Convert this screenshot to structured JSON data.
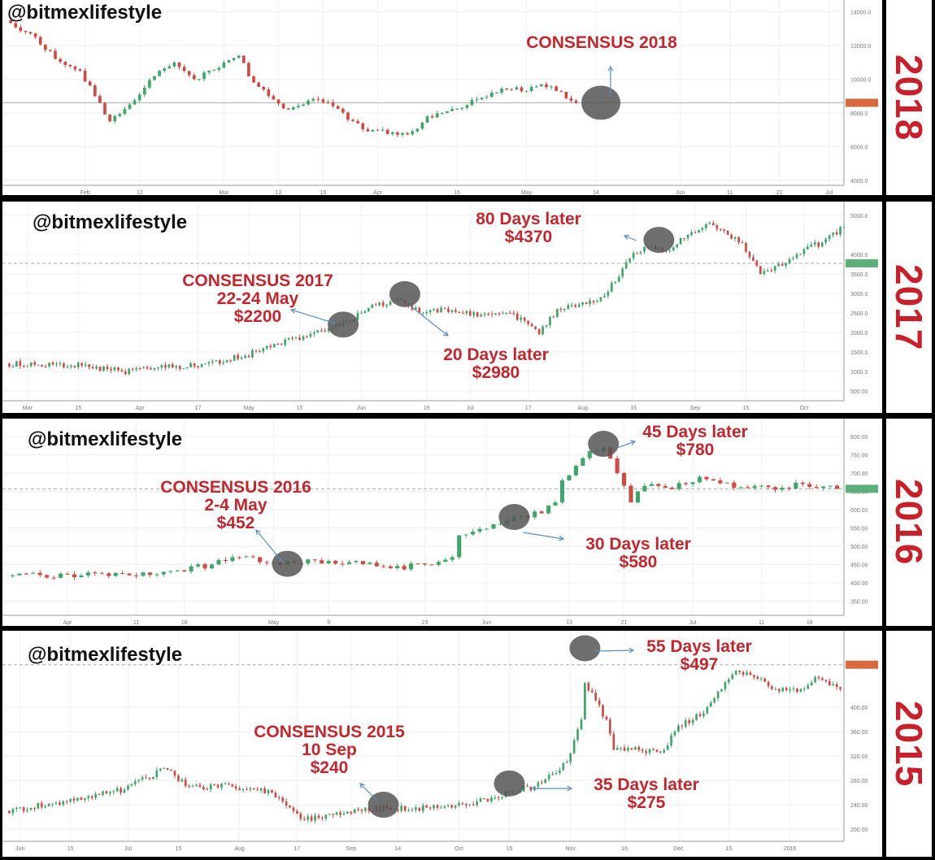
{
  "panels": [
    {
      "year": "2018",
      "watermark": "@bitmexlifestyle",
      "annotations": [
        {
          "lines": [
            "CONSENSUS 2018"
          ]
        }
      ]
    },
    {
      "year": "2017",
      "watermark": "@bitmexlifestyle",
      "annotations": [
        {
          "lines": [
            "CONSENSUS 2017",
            "22-24 May",
            "$2200"
          ]
        },
        {
          "lines": [
            "20 Days later",
            "$2980"
          ]
        },
        {
          "lines": [
            "80 Days later",
            "$4370"
          ]
        }
      ]
    },
    {
      "year": "2016",
      "watermark": "@bitmexlifestyle",
      "annotations": [
        {
          "lines": [
            "CONSENSUS 2016",
            "2-4 May",
            "$452"
          ]
        },
        {
          "lines": [
            "30 Days later",
            "$580"
          ]
        },
        {
          "lines": [
            "45 Days later",
            "$780"
          ]
        }
      ]
    },
    {
      "year": "2015",
      "watermark": "@bitmexlifestyle",
      "annotations": [
        {
          "lines": [
            "CONSENSUS 2015",
            "10 Sep",
            "$240"
          ]
        },
        {
          "lines": [
            "35 Days later",
            "$275"
          ]
        },
        {
          "lines": [
            "55 Days later",
            "$497"
          ]
        }
      ]
    }
  ],
  "colors": {
    "up": "#3fa66a",
    "down": "#cf4a43",
    "annotation": "#c3262c",
    "year": "#c8202a",
    "highlight": "#555555"
  },
  "chart_data": [
    {
      "type": "candlestick",
      "xlim": [
        "2018-01-16",
        "2018-07-04"
      ],
      "ylim": [
        3700,
        14700
      ],
      "grid": true,
      "yticks": [
        4000,
        6000,
        8000,
        10000,
        12000,
        14000
      ],
      "xticks": [
        {
          "label": "Feb",
          "date": "2018-02-01"
        },
        {
          "label": "12",
          "date": "2018-02-12"
        },
        {
          "label": "Mar",
          "date": "2018-03-01"
        },
        {
          "label": "12",
          "date": "2018-03-12"
        },
        {
          "label": "19",
          "date": "2018-03-21"
        },
        {
          "label": "Apr",
          "date": "2018-04-01"
        },
        {
          "label": "16",
          "date": "2018-04-17"
        },
        {
          "label": "May",
          "date": "2018-05-01"
        },
        {
          "label": "14",
          "date": "2018-05-15"
        },
        {
          "label": "Jun",
          "date": "2018-06-01"
        },
        {
          "label": "11",
          "date": "2018-06-11"
        },
        {
          "label": "21",
          "date": "2018-06-21"
        },
        {
          "label": "Jul",
          "date": "2018-07-01"
        }
      ],
      "price_line": 8600,
      "close": [
        [
          "2018-01-16",
          13500
        ],
        [
          "2018-01-22",
          12500
        ],
        [
          "2018-01-26",
          11200
        ],
        [
          "2018-01-31",
          10500
        ],
        [
          "2018-02-03",
          9000
        ],
        [
          "2018-02-06",
          7500
        ],
        [
          "2018-02-10",
          8500
        ],
        [
          "2018-02-13",
          9500
        ],
        [
          "2018-02-16",
          10500
        ],
        [
          "2018-02-19",
          11000
        ],
        [
          "2018-02-23",
          10000
        ],
        [
          "2018-02-26",
          10500
        ],
        [
          "2018-03-01",
          11000
        ],
        [
          "2018-03-04",
          11400
        ],
        [
          "2018-03-07",
          9800
        ],
        [
          "2018-03-11",
          8800
        ],
        [
          "2018-03-14",
          8200
        ],
        [
          "2018-03-17",
          8500
        ],
        [
          "2018-03-20",
          8800
        ],
        [
          "2018-03-23",
          8400
        ],
        [
          "2018-03-26",
          7600
        ],
        [
          "2018-03-30",
          6900
        ],
        [
          "2018-04-02",
          7000
        ],
        [
          "2018-04-05",
          6700
        ],
        [
          "2018-04-08",
          6900
        ],
        [
          "2018-04-11",
          7800
        ],
        [
          "2018-04-15",
          8100
        ],
        [
          "2018-04-18",
          8300
        ],
        [
          "2018-04-21",
          8800
        ],
        [
          "2018-04-24",
          9200
        ],
        [
          "2018-04-28",
          9400
        ],
        [
          "2018-05-01",
          9300
        ],
        [
          "2018-05-04",
          9700
        ],
        [
          "2018-05-07",
          9300
        ],
        [
          "2018-05-11",
          8600
        ]
      ],
      "highlights": [
        {
          "date": "2018-05-16",
          "price": 8600
        }
      ]
    },
    {
      "type": "candlestick",
      "xlim": [
        "2017-02-23",
        "2017-10-12"
      ],
      "ylim": [
        250,
        5350
      ],
      "grid": true,
      "yticks": [
        500,
        1000,
        1500,
        2000,
        2500,
        3000,
        3500,
        4000,
        5000
      ],
      "xticks": [
        {
          "label": "Mar",
          "date": "2017-03-01"
        },
        {
          "label": "15",
          "date": "2017-03-15"
        },
        {
          "label": "Apr",
          "date": "2017-04-01"
        },
        {
          "label": "17",
          "date": "2017-04-17"
        },
        {
          "label": "May",
          "date": "2017-05-01"
        },
        {
          "label": "15",
          "date": "2017-05-15"
        },
        {
          "label": "Jun",
          "date": "2017-06-01"
        },
        {
          "label": "19",
          "date": "2017-06-19"
        },
        {
          "label": "Jul",
          "date": "2017-07-01"
        },
        {
          "label": "17",
          "date": "2017-07-17"
        },
        {
          "label": "Aug",
          "date": "2017-08-01"
        },
        {
          "label": "15",
          "date": "2017-08-15"
        },
        {
          "label": "Sep",
          "date": "2017-09-01"
        },
        {
          "label": "15",
          "date": "2017-09-15"
        },
        {
          "label": "Oct",
          "date": "2017-10-01"
        }
      ],
      "price_line": 3770,
      "close": [
        [
          "2017-02-23",
          1200
        ],
        [
          "2017-03-16",
          1150
        ],
        [
          "2017-03-27",
          1000
        ],
        [
          "2017-04-08",
          1100
        ],
        [
          "2017-04-19",
          1200
        ],
        [
          "2017-04-30",
          1400
        ],
        [
          "2017-05-09",
          1700
        ],
        [
          "2017-05-16",
          1900
        ],
        [
          "2017-05-23",
          2100
        ],
        [
          "2017-05-28",
          2300
        ],
        [
          "2017-06-01",
          2500
        ],
        [
          "2017-06-05",
          2700
        ],
        [
          "2017-06-12",
          2850
        ],
        [
          "2017-06-17",
          2500
        ],
        [
          "2017-06-21",
          2600
        ],
        [
          "2017-06-28",
          2500
        ],
        [
          "2017-07-04",
          2450
        ],
        [
          "2017-07-11",
          2500
        ],
        [
          "2017-07-16",
          2300
        ],
        [
          "2017-07-20",
          1950
        ],
        [
          "2017-07-25",
          2600
        ],
        [
          "2017-07-29",
          2700
        ],
        [
          "2017-08-05",
          2800
        ],
        [
          "2017-08-10",
          3300
        ],
        [
          "2017-08-14",
          3900
        ],
        [
          "2017-08-19",
          4200
        ],
        [
          "2017-08-25",
          4100
        ],
        [
          "2017-08-30",
          4500
        ],
        [
          "2017-09-05",
          4800
        ],
        [
          "2017-09-10",
          4500
        ],
        [
          "2017-09-14",
          4300
        ],
        [
          "2017-09-19",
          3500
        ],
        [
          "2017-09-23",
          3700
        ],
        [
          "2017-09-28",
          3900
        ],
        [
          "2017-10-02",
          4200
        ],
        [
          "2017-10-06",
          4300
        ],
        [
          "2017-10-12",
          4700
        ]
      ],
      "highlights": [
        {
          "date": "2017-05-27",
          "price": 2200
        },
        {
          "date": "2017-06-13",
          "price": 2980
        },
        {
          "date": "2017-08-22",
          "price": 4370
        }
      ]
    },
    {
      "type": "candlestick",
      "xlim": [
        "2016-03-23",
        "2016-07-23"
      ],
      "ylim": [
        311,
        849
      ],
      "grid": true,
      "yticks": [
        350,
        400,
        450,
        500,
        550,
        600,
        650,
        700,
        750,
        800
      ],
      "xticks": [
        {
          "label": "Apr",
          "date": "2016-04-01"
        },
        {
          "label": "11",
          "date": "2016-04-11"
        },
        {
          "label": "18",
          "date": "2016-04-18"
        },
        {
          "label": "May",
          "date": "2016-05-01"
        },
        {
          "label": "9",
          "date": "2016-05-09"
        },
        {
          "label": "23",
          "date": "2016-05-23"
        },
        {
          "label": "Jun",
          "date": "2016-06-01"
        },
        {
          "label": "13",
          "date": "2016-06-13"
        },
        {
          "label": "21",
          "date": "2016-06-21"
        },
        {
          "label": "Jul",
          "date": "2016-07-01"
        },
        {
          "label": "11",
          "date": "2016-07-11"
        },
        {
          "label": "18",
          "date": "2016-07-18"
        }
      ],
      "price_line": 657,
      "close": [
        [
          "2016-03-23",
          420
        ],
        [
          "2016-04-03",
          420
        ],
        [
          "2016-04-15",
          430
        ],
        [
          "2016-04-22",
          450
        ],
        [
          "2016-04-26",
          470
        ],
        [
          "2016-05-01",
          455
        ],
        [
          "2016-05-09",
          460
        ],
        [
          "2016-05-15",
          455
        ],
        [
          "2016-05-18",
          440
        ],
        [
          "2016-05-23",
          450
        ],
        [
          "2016-05-27",
          470
        ],
        [
          "2016-05-28",
          530
        ],
        [
          "2016-05-30",
          540
        ],
        [
          "2016-06-02",
          560
        ],
        [
          "2016-06-05",
          580
        ],
        [
          "2016-06-09",
          590
        ],
        [
          "2016-06-11",
          620
        ],
        [
          "2016-06-12",
          680
        ],
        [
          "2016-06-14",
          720
        ],
        [
          "2016-06-16",
          760
        ],
        [
          "2016-06-18",
          770
        ],
        [
          "2016-06-19",
          740
        ],
        [
          "2016-06-20",
          700
        ],
        [
          "2016-06-22",
          620
        ],
        [
          "2016-06-23",
          650
        ],
        [
          "2016-06-25",
          670
        ],
        [
          "2016-06-27",
          660
        ],
        [
          "2016-06-30",
          670
        ],
        [
          "2016-07-02",
          690
        ],
        [
          "2016-07-04",
          680
        ],
        [
          "2016-07-07",
          660
        ],
        [
          "2016-07-10",
          665
        ],
        [
          "2016-07-14",
          660
        ],
        [
          "2016-07-17",
          670
        ],
        [
          "2016-07-22",
          657
        ]
      ],
      "highlights": [
        {
          "date": "2016-05-03",
          "price": 452
        },
        {
          "date": "2016-06-05",
          "price": 580
        },
        {
          "date": "2016-06-18",
          "price": 780
        }
      ]
    },
    {
      "type": "candlestick",
      "xlim": [
        "2015-05-28",
        "2016-01-16"
      ],
      "ylim": [
        180,
        527
      ],
      "grid": true,
      "yticks": [
        200,
        240,
        280,
        320,
        360,
        400
      ],
      "xticks": [
        {
          "label": "Jun",
          "date": "2015-06-01"
        },
        {
          "label": "15",
          "date": "2015-06-15"
        },
        {
          "label": "Jul",
          "date": "2015-07-01"
        },
        {
          "label": "15",
          "date": "2015-07-15"
        },
        {
          "label": "Aug",
          "date": "2015-08-01"
        },
        {
          "label": "17",
          "date": "2015-08-17"
        },
        {
          "label": "Sep",
          "date": "2015-09-01"
        },
        {
          "label": "14",
          "date": "2015-09-14"
        },
        {
          "label": "Oct",
          "date": "2015-10-01"
        },
        {
          "label": "15",
          "date": "2015-10-15"
        },
        {
          "label": "Nov",
          "date": "2015-11-01"
        },
        {
          "label": "16",
          "date": "2015-11-16"
        },
        {
          "label": "Dec",
          "date": "2015-12-01"
        },
        {
          "label": "15",
          "date": "2015-12-15"
        },
        {
          "label": "2016",
          "date": "2016-01-01"
        }
      ],
      "price_line": 470,
      "close": [
        [
          "2015-05-28",
          230
        ],
        [
          "2015-06-14",
          245
        ],
        [
          "2015-06-30",
          265
        ],
        [
          "2015-07-11",
          300
        ],
        [
          "2015-07-18",
          270
        ],
        [
          "2015-07-30",
          270
        ],
        [
          "2015-08-10",
          260
        ],
        [
          "2015-08-19",
          215
        ],
        [
          "2015-08-26",
          225
        ],
        [
          "2015-09-04",
          230
        ],
        [
          "2015-09-11",
          235
        ],
        [
          "2015-09-18",
          232
        ],
        [
          "2015-09-27",
          238
        ],
        [
          "2015-10-06",
          245
        ],
        [
          "2015-10-15",
          260
        ],
        [
          "2015-10-22",
          270
        ],
        [
          "2015-10-31",
          310
        ],
        [
          "2015-11-04",
          380
        ],
        [
          "2015-11-05",
          440
        ],
        [
          "2015-11-11",
          380
        ],
        [
          "2015-11-13",
          330
        ],
        [
          "2015-11-20",
          330
        ],
        [
          "2015-11-27",
          330
        ],
        [
          "2015-12-01",
          370
        ],
        [
          "2015-12-08",
          390
        ],
        [
          "2015-12-13",
          430
        ],
        [
          "2015-12-17",
          460
        ],
        [
          "2015-12-22",
          450
        ],
        [
          "2015-12-28",
          430
        ],
        [
          "2016-01-04",
          430
        ],
        [
          "2016-01-08",
          450
        ],
        [
          "2016-01-15",
          430
        ]
      ],
      "highlights": [
        {
          "date": "2015-09-10",
          "price": 240
        },
        {
          "date": "2015-10-15",
          "price": 275
        },
        {
          "date": "2015-11-05",
          "price": 497
        }
      ]
    }
  ]
}
